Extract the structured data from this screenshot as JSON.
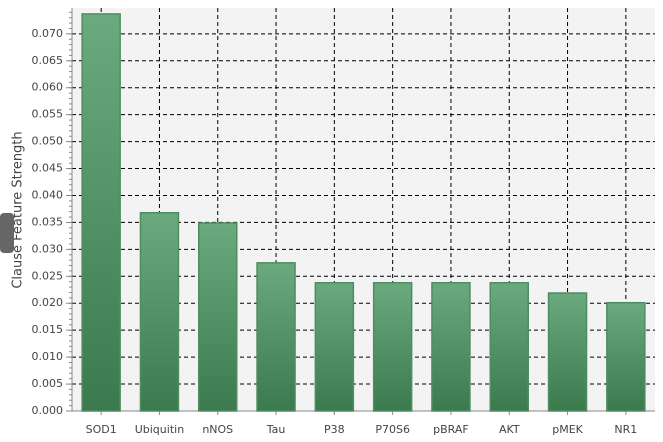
{
  "chart_data": {
    "type": "bar",
    "y_label": "Clause Feature Strength",
    "categories": [
      "SOD1",
      "Ubiquitin",
      "nNOS",
      "Tau",
      "P38",
      "P70S6",
      "pBRAF",
      "AKT",
      "pMEK",
      "NR1"
    ],
    "values": [
      0.0737,
      0.0368,
      0.0349,
      0.0275,
      0.0238,
      0.0238,
      0.0238,
      0.0238,
      0.0219,
      0.0201
    ],
    "color": "#4f8c62",
    "ylim": [
      0,
      0.0748
    ],
    "yticks": [
      {
        "value": 0,
        "label": "0.000"
      },
      {
        "value": 0.005,
        "label": "0.005"
      },
      {
        "value": 0.01,
        "label": "0.010"
      },
      {
        "value": 0.015,
        "label": "0.015"
      },
      {
        "value": 0.02,
        "label": "0.020"
      },
      {
        "value": 0.025,
        "label": "0.025"
      },
      {
        "value": 0.03,
        "label": "0.030"
      },
      {
        "value": 0.035,
        "label": "0.035"
      },
      {
        "value": 0.04,
        "label": "0.040"
      },
      {
        "value": 0.045,
        "label": "0.045"
      },
      {
        "value": 0.05,
        "label": "0.050"
      },
      {
        "value": 0.055,
        "label": "0.055"
      },
      {
        "value": 0.06,
        "label": "0.060"
      },
      {
        "value": 0.065,
        "label": "0.065"
      },
      {
        "value": 0.07,
        "label": "0.070"
      }
    ],
    "grid": true
  }
}
